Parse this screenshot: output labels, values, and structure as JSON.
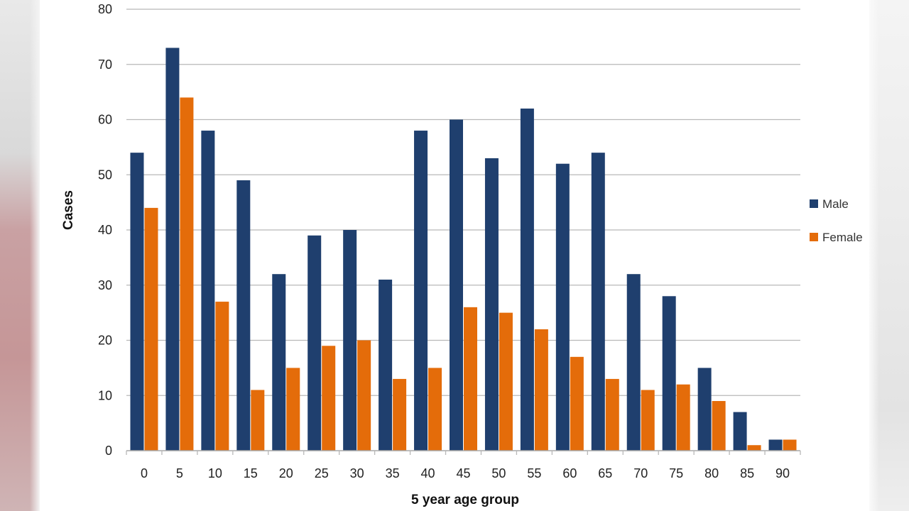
{
  "chart_data": {
    "type": "bar",
    "categories": [
      "0",
      "5",
      "10",
      "15",
      "20",
      "25",
      "30",
      "35",
      "40",
      "45",
      "50",
      "55",
      "60",
      "65",
      "70",
      "75",
      "80",
      "85",
      "90"
    ],
    "series": [
      {
        "name": "Male",
        "color": "#1f3f6e",
        "values": [
          54,
          73,
          58,
          49,
          32,
          39,
          40,
          31,
          58,
          60,
          53,
          62,
          52,
          54,
          32,
          28,
          15,
          7,
          2
        ]
      },
      {
        "name": "Female",
        "color": "#e46c0a",
        "values": [
          44,
          64,
          27,
          11,
          15,
          19,
          20,
          13,
          15,
          26,
          25,
          22,
          17,
          13,
          11,
          12,
          9,
          1,
          2
        ]
      }
    ],
    "xlabel": "5 year age group",
    "ylabel": "Cases",
    "ylim": [
      0,
      80
    ],
    "yticks": [
      0,
      10,
      20,
      30,
      40,
      50,
      60,
      70,
      80
    ],
    "grid": true,
    "legend_position": "right"
  }
}
